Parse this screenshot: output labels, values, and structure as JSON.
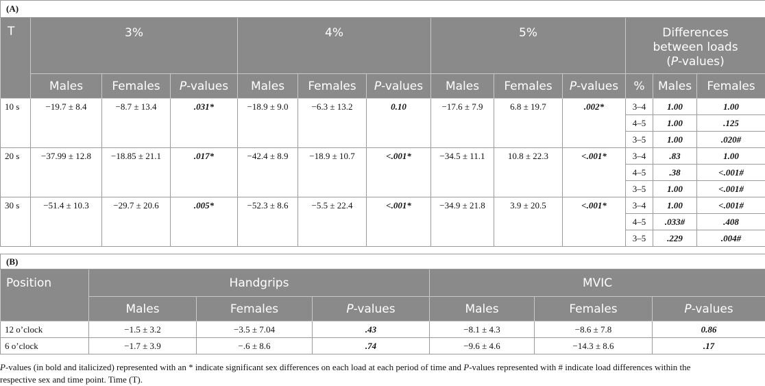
{
  "tableA": {
    "label": "(A)",
    "col_T": "T",
    "loads": [
      "3%",
      "4%",
      "5%"
    ],
    "diff_header_lines": [
      "Differences",
      "between loads"
    ],
    "diff_header_pval": "(P-values)",
    "sub_males": "Males",
    "sub_females": "Females",
    "sub_pvalues": "P-values",
    "sub_pct": "%",
    "rows": [
      {
        "t": "10 s",
        "vals": [
          [
            "−19.7 ± 8.4",
            "−8.7 ± 13.4",
            ".031*"
          ],
          [
            "−18.9 ± 9.0",
            "−6.3 ± 13.2",
            "0.10"
          ],
          [
            "−17.6 ± 7.9",
            "6.8 ± 19.7",
            ".002*"
          ]
        ],
        "diffs": [
          [
            "3–4",
            "1.00",
            "1.00"
          ],
          [
            "4–5",
            "1.00",
            ".125"
          ],
          [
            "3–5",
            "1.00",
            ".020#"
          ]
        ]
      },
      {
        "t": "20 s",
        "vals": [
          [
            "−37.99 ± 12.8",
            "−18.85 ± 21.1",
            ".017*"
          ],
          [
            "−42.4 ± 8.9",
            "−18.9 ± 10.7",
            "<.001*"
          ],
          [
            "−34.5 ± 11.1",
            "10.8 ± 22.3",
            "<.001*"
          ]
        ],
        "diffs": [
          [
            "3–4",
            ".83",
            "1.00"
          ],
          [
            "4–5",
            ".38",
            "<.001#"
          ],
          [
            "3–5",
            "1.00",
            "<.001#"
          ]
        ]
      },
      {
        "t": "30 s",
        "vals": [
          [
            "−51.4 ± 10.3",
            "−29.7 ± 20.6",
            ".005*"
          ],
          [
            "−52.3 ± 8.6",
            "−5.5 ± 22.4",
            "<.001*"
          ],
          [
            "−34.9 ± 21.8",
            "3.9 ± 20.5",
            "<.001*"
          ]
        ],
        "diffs": [
          [
            "3–4",
            "1.00",
            "<.001#"
          ],
          [
            "4–5",
            ".033#",
            ".408"
          ],
          [
            "3–5",
            ".229",
            ".004#"
          ]
        ]
      }
    ]
  },
  "tableB": {
    "label": "(B)",
    "col_position": "Position",
    "groups": [
      "Handgrips",
      "MVIC"
    ],
    "sub_males": "Males",
    "sub_females": "Females",
    "sub_pvalues": "P-values",
    "rows": [
      {
        "pos": "12 o’clock",
        "vals": [
          "−1.5 ± 3.2",
          "−3.5 ± 7.04",
          ".43",
          "−8.1 ± 4.3",
          "−8.6 ± 7.8",
          "0.86"
        ]
      },
      {
        "pos": "6 o’clock",
        "vals": [
          "−1.7 ± 3.9",
          "−.6 ± 8.6",
          ".74",
          "−9.6 ± 4.6",
          "−14.3 ± 8.6",
          ".17"
        ]
      }
    ]
  },
  "note": {
    "line1_italic": "P",
    "line1_rest": "-values (in bold and italicized) represented with an * indicate significant sex differences on each load at each period of time and ",
    "line1_italic2": "P",
    "line1_rest2": "-values represented with # indicate load differences within the",
    "line2": "respective sex and time point. Time (T)."
  }
}
